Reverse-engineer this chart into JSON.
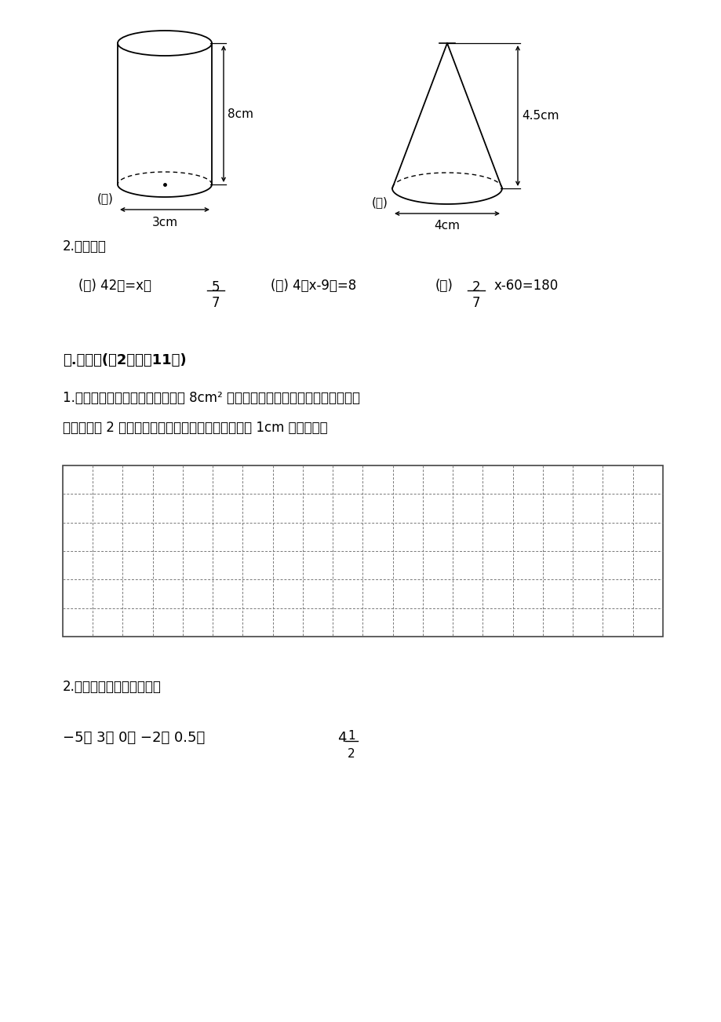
{
  "bg_color": "#ffffff",
  "text_color": "#000000",
  "section2_label": "2.解方程。",
  "eq1_prefix": "(１) 42：=x：",
  "eq1_frac_num": "5",
  "eq1_frac_den": "7",
  "eq2": "(２) 4（x-9）=8",
  "eq3_prefix": "(３)",
  "eq3_frac_num": "2",
  "eq3_frac_den": "7",
  "eq3_rest": "x-60=180",
  "section5_title": "五.作图题(八2题，八11分)",
  "q1_text1": "1.在下面的方格纸中画一个面积是 8cm² 的长方形，再把这个长方形的各边长扩",
  "q1_text2": "大到原来的 2 倍，画出图形。（每个方格代表边长为 1cm 的正方形）",
  "q2_text": "2.在直线上表示下列各数。",
  "numbers_text": "−5， 3， 0， −2， 0.5，",
  "mixed_num_whole": "4",
  "mixed_num_frac_top": "1",
  "mixed_num_frac_bot": "2",
  "grid_cols": 20,
  "grid_rows": 6,
  "cyl_label": "(１)",
  "cyl_height_label": "8cm",
  "cyl_radius_label": "3cm",
  "cone_label": "(２)",
  "cone_height_label": "4.5cm",
  "cone_diam_label": "4cm"
}
